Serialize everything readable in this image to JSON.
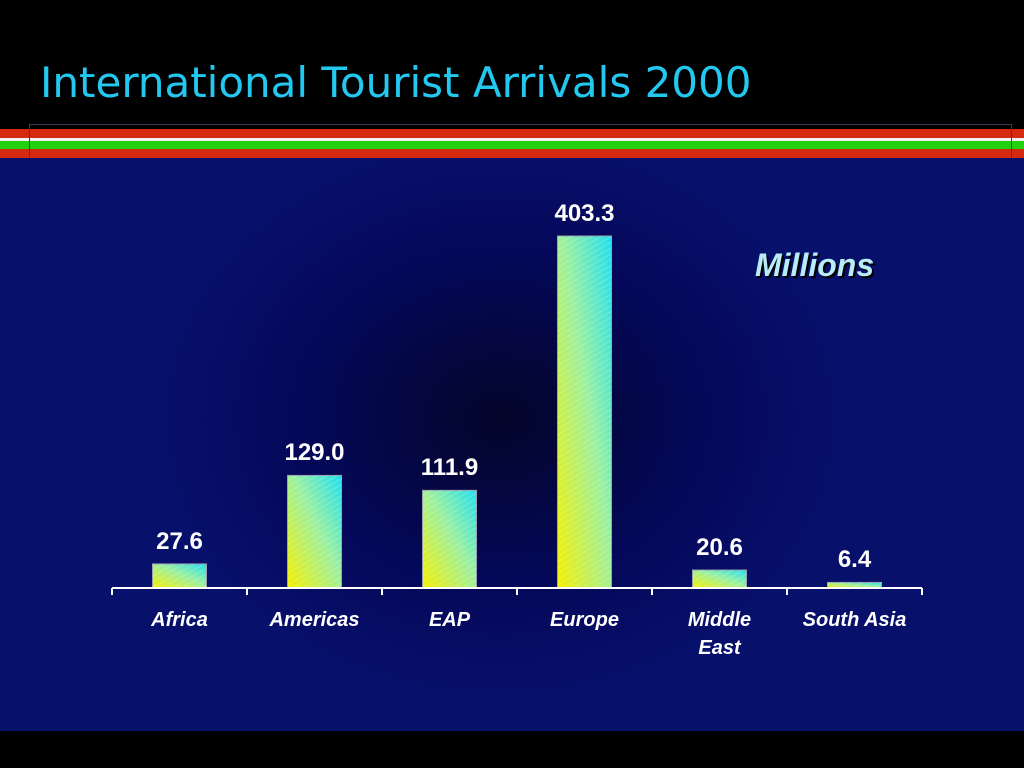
{
  "slide": {
    "title": "International Tourist Arrivals 2000"
  },
  "colors": {
    "title": "#22c8f0",
    "background": "#05085a",
    "stripe_red": "#d62a10",
    "stripe_green": "#22d010",
    "bar_bottom": "#f5f000",
    "bar_top": "#20e0f0"
  },
  "chart_data": {
    "type": "bar",
    "title": "",
    "unit_label": "Millions",
    "categories": [
      "Africa",
      "Americas",
      "EAP",
      "Europe",
      "Middle East",
      "South Asia"
    ],
    "values": [
      27.6,
      129.0,
      111.9,
      403.3,
      20.6,
      6.4
    ],
    "value_labels": [
      "27.6",
      "129.0",
      "111.9",
      "403.3",
      "20.6",
      "6.4"
    ],
    "xlabel": "",
    "ylabel": "",
    "ylim": [
      0,
      403.3
    ],
    "grid": false,
    "legend": "none"
  }
}
